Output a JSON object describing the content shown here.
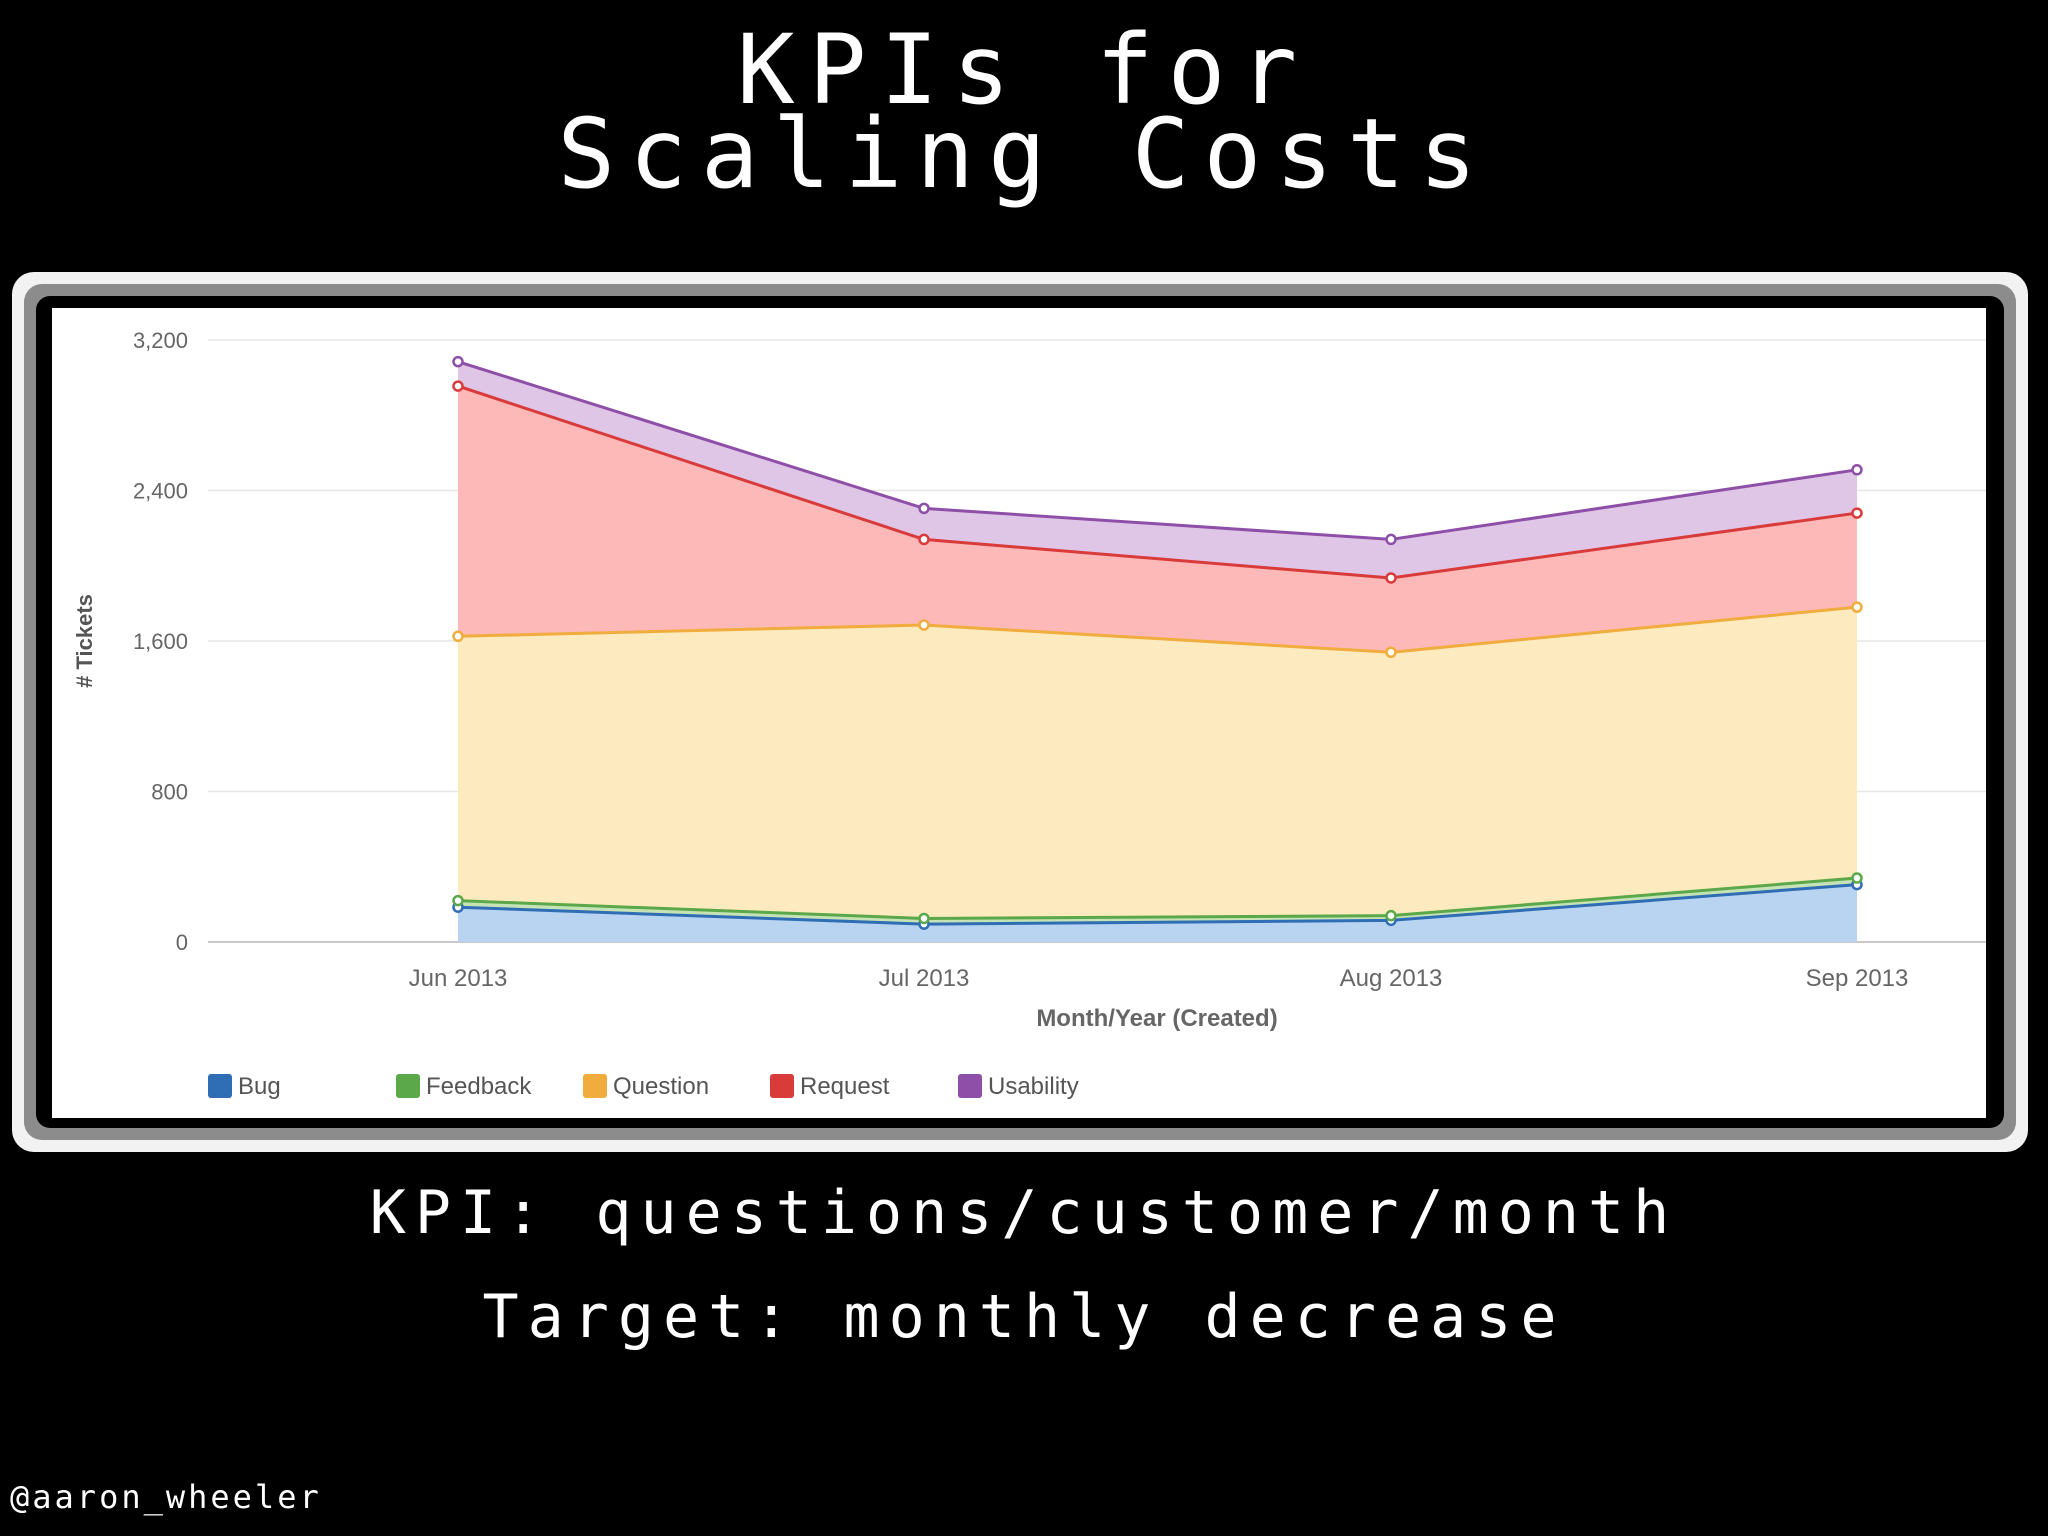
{
  "slide": {
    "title_line1": "KPIs for",
    "title_line2": "Scaling Costs",
    "kpi_text": "KPI: questions/customer/month",
    "target_text": "Target: monthly decrease",
    "handle": "@aaron_wheeler"
  },
  "chart_data": {
    "type": "area",
    "stacked": true,
    "categories": [
      "Jun 2013",
      "Jul 2013",
      "Aug 2013",
      "Sep 2013"
    ],
    "xlabel": "Month/Year (Created)",
    "ylabel": "# Tickets",
    "ylim": [
      0,
      3200
    ],
    "yticks": [
      0,
      800,
      1600,
      2400,
      3200
    ],
    "ytick_labels": [
      "0",
      "800",
      "1,600",
      "2,400",
      "3,200"
    ],
    "grid": true,
    "legend_position": "bottom-left",
    "series": [
      {
        "name": "Bug",
        "color": "#2f6db5",
        "fill": "#b8d4f0",
        "values": [
          185,
          95,
          115,
          305
        ]
      },
      {
        "name": "Feedback",
        "color": "#5aa84a",
        "fill": "#c5e3b5",
        "values": [
          35,
          30,
          25,
          35
        ]
      },
      {
        "name": "Question",
        "color": "#f0ac3c",
        "fill": "#fdeabf",
        "values": [
          1405,
          1560,
          1400,
          1440
        ]
      },
      {
        "name": "Request",
        "color": "#d93a3a",
        "fill": "#fdb8b8",
        "values": [
          1330,
          455,
          395,
          500
        ]
      },
      {
        "name": "Usability",
        "color": "#8e4fa8",
        "fill": "#e0c6e6",
        "values": [
          130,
          165,
          205,
          230
        ]
      }
    ]
  }
}
